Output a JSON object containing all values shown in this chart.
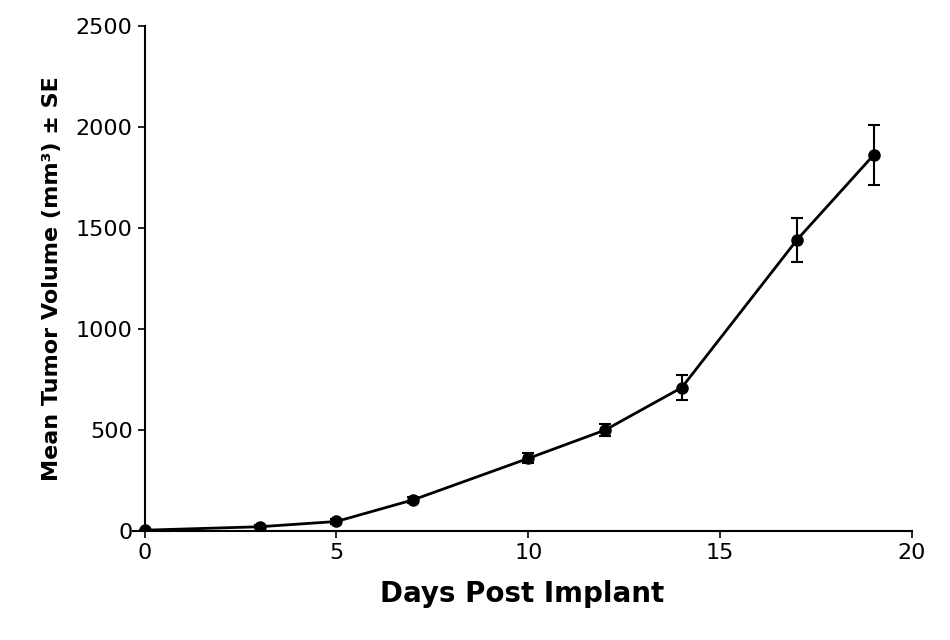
{
  "x": [
    0,
    3,
    5,
    7,
    10,
    12,
    14,
    17,
    19
  ],
  "y": [
    5,
    22,
    48,
    155,
    360,
    500,
    710,
    1440,
    1860
  ],
  "yerr": [
    3,
    8,
    10,
    15,
    25,
    30,
    60,
    110,
    150
  ],
  "xlabel": "Days Post Implant",
  "ylabel": "Mean Tumor Volume (mm³) ± SE",
  "xlim": [
    -0.3,
    20
  ],
  "ylim": [
    0,
    2500
  ],
  "xticks": [
    0,
    5,
    10,
    15,
    20
  ],
  "yticks": [
    0,
    500,
    1000,
    1500,
    2000,
    2500
  ],
  "line_color": "#000000",
  "marker_color": "#000000",
  "marker_size": 8,
  "line_width": 2.0,
  "capsize": 4,
  "xlabel_fontsize": 20,
  "ylabel_fontsize": 16,
  "tick_fontsize": 16,
  "background_color": "#ffffff"
}
